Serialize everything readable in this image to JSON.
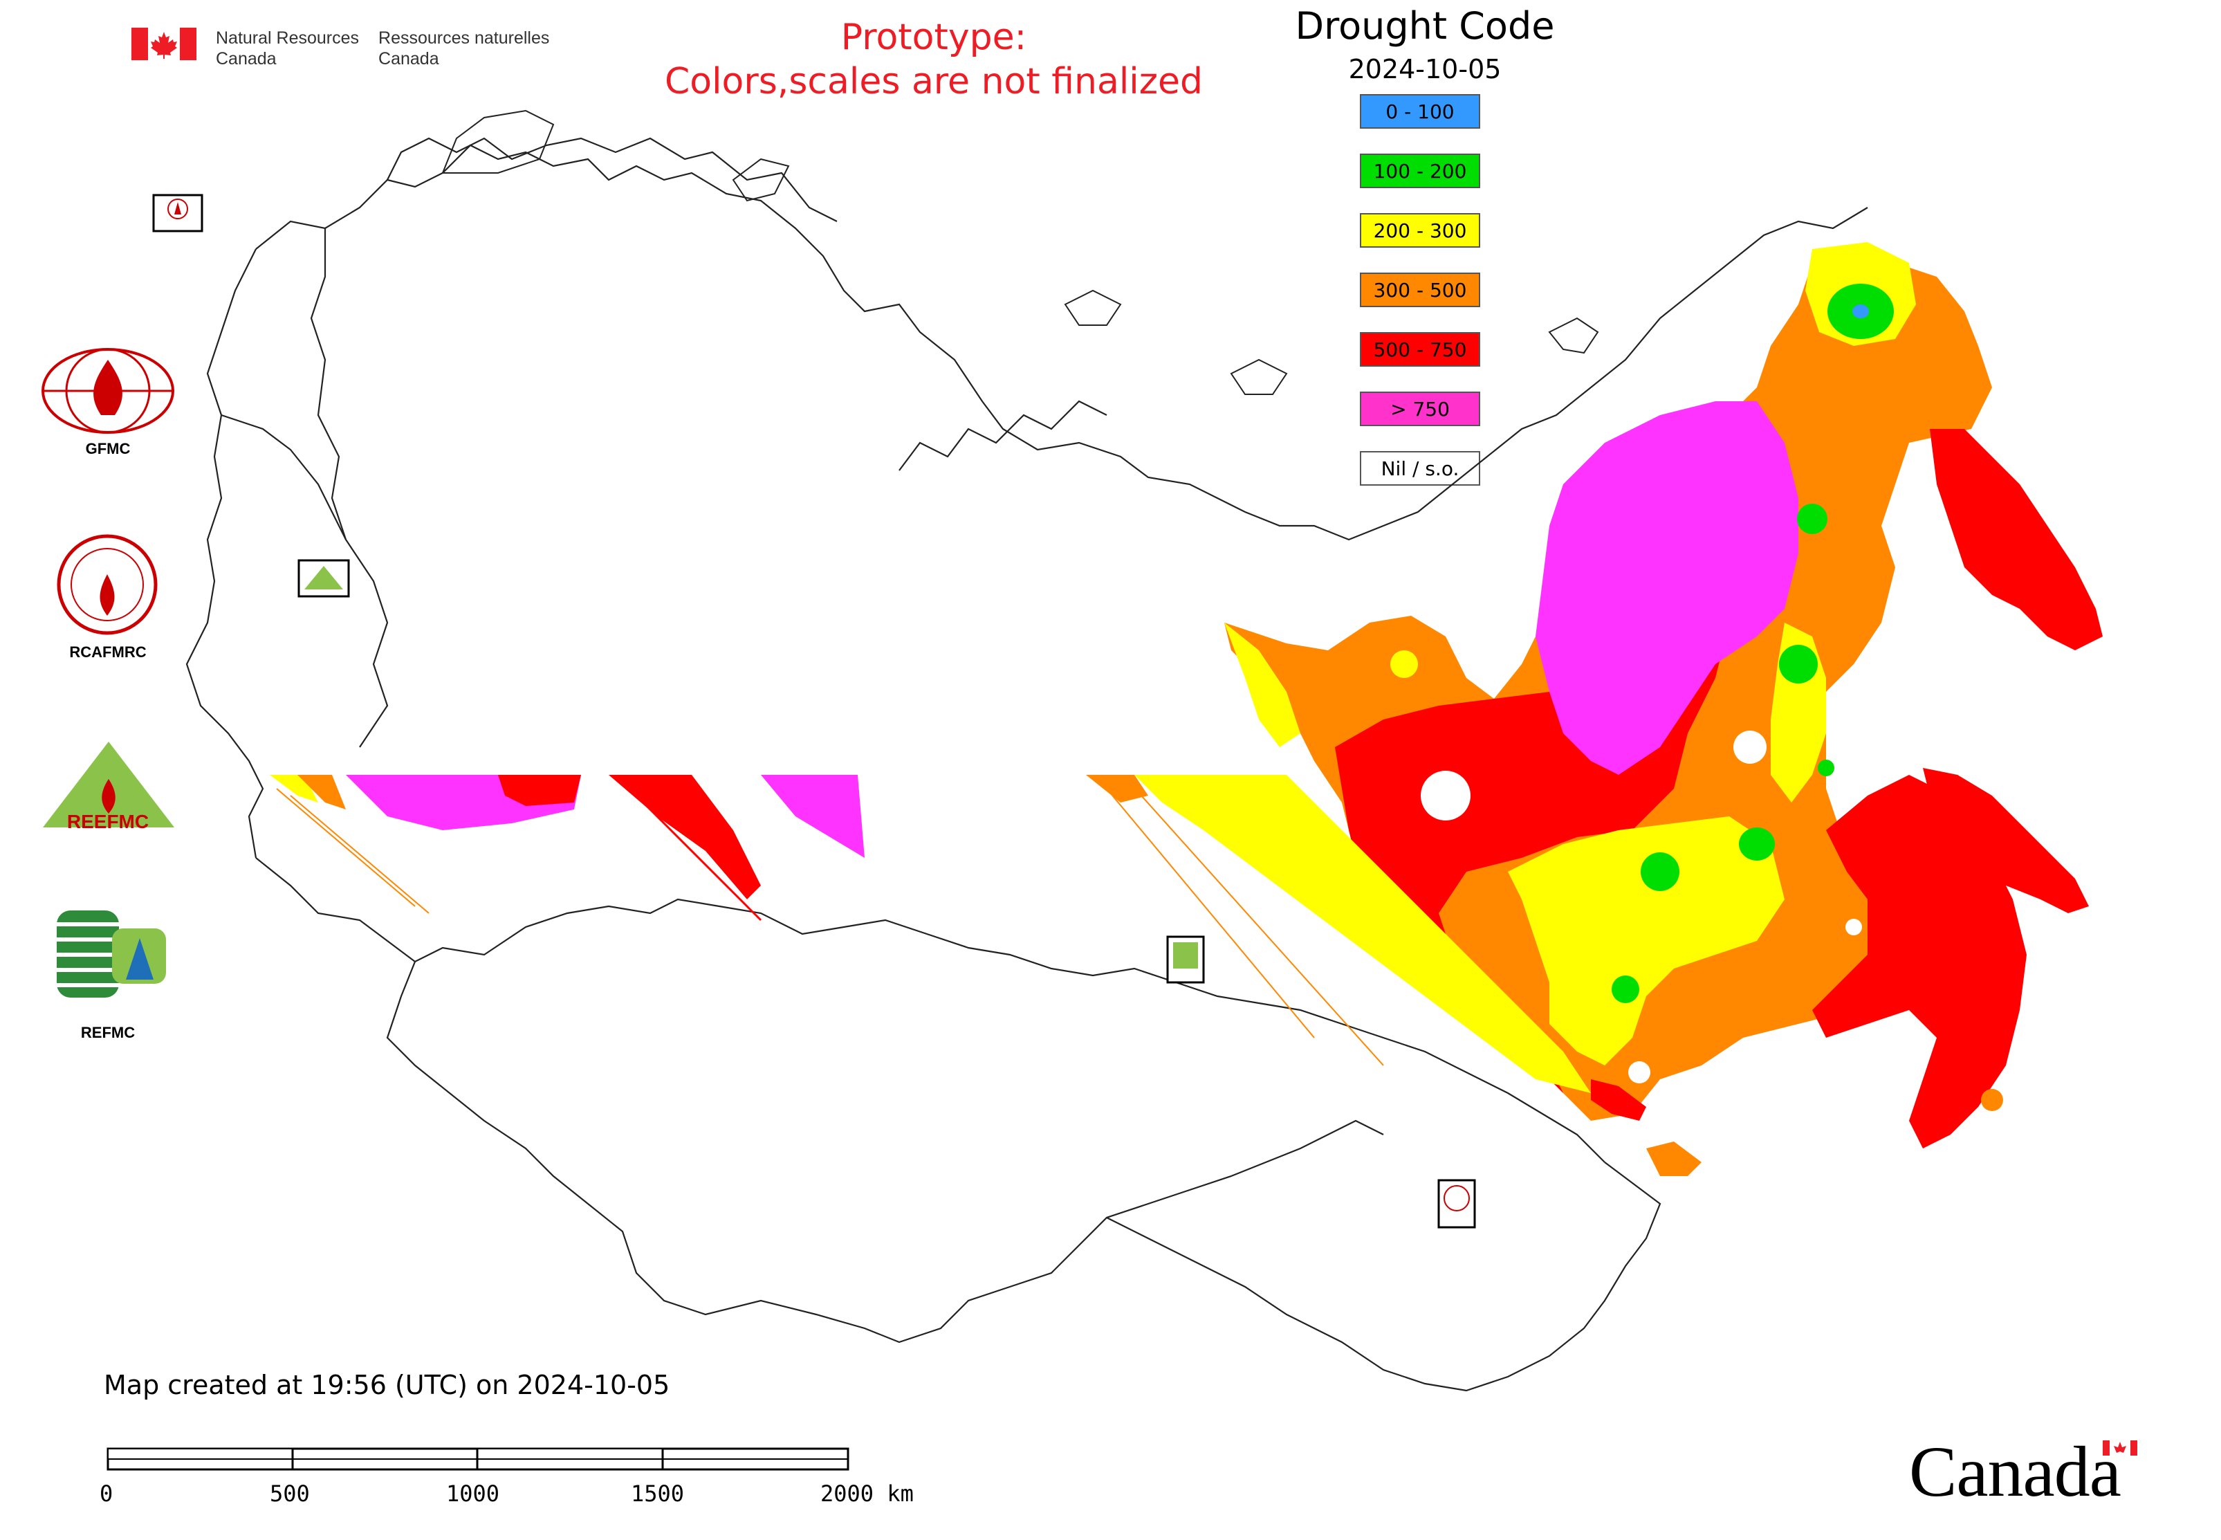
{
  "header": {
    "org_en_line1": "Natural Resources",
    "org_en_line2": "Canada",
    "org_fr_line1": "Ressources naturelles",
    "org_fr_line2": "Canada"
  },
  "prototype": {
    "line1": "Prototype:",
    "line2": "Colors,scales are not finalized"
  },
  "map": {
    "title": "Drought Code",
    "date": "2024-10-05",
    "legend": [
      {
        "label": "0 - 100",
        "color": "#3399ff"
      },
      {
        "label": "100 - 200",
        "color": "#00dd00"
      },
      {
        "label": "200 - 300",
        "color": "#ffff00"
      },
      {
        "label": "300 - 500",
        "color": "#ff8800"
      },
      {
        "label": "500 - 750",
        "color": "#ff0000"
      },
      {
        "label": "> 750",
        "color": "#ff33cc"
      },
      {
        "label": "Nil / s.o.",
        "color": "#ffffff"
      }
    ]
  },
  "logos": {
    "gfmc": "GFMC",
    "rcafmrc": "RCAFMRC",
    "reefmc": "REEFMC",
    "refmc": "REFMC"
  },
  "footer": {
    "created": "Map created at 19:56 (UTC) on 2024-10-05"
  },
  "scale_bar": {
    "labels": [
      "0",
      "500",
      "1000",
      "1500",
      "2000 km"
    ]
  },
  "wordmark": "Canada"
}
